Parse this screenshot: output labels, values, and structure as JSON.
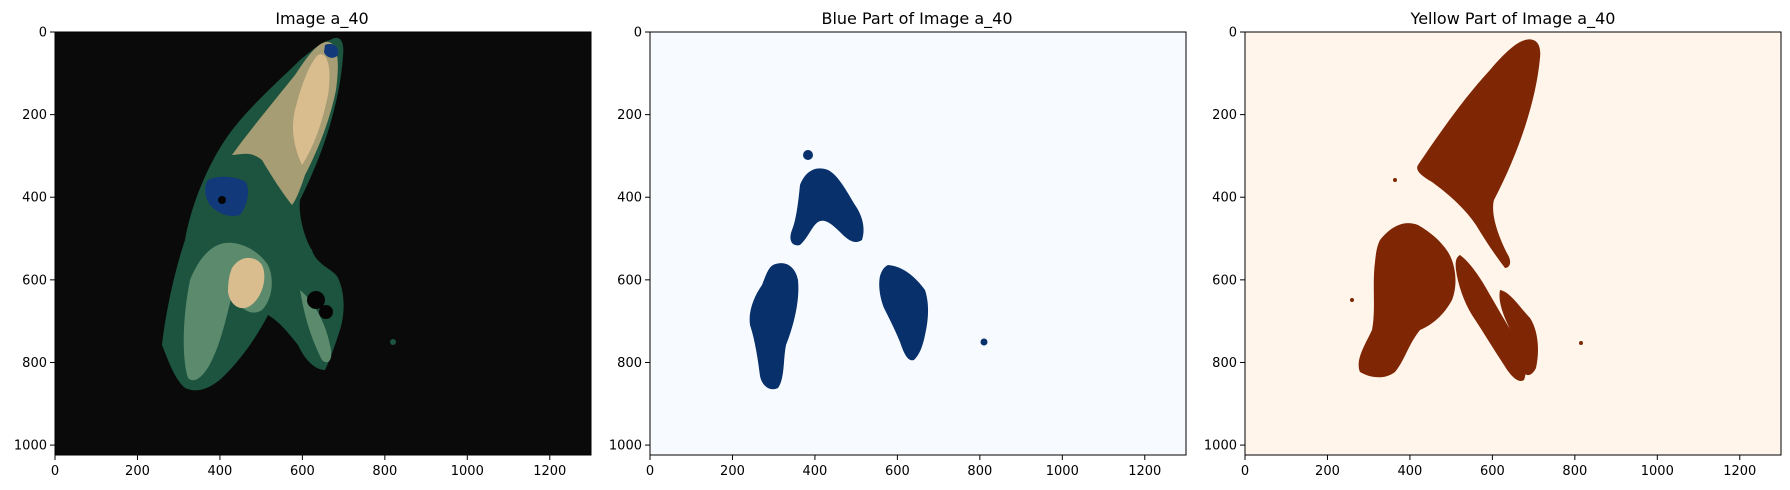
{
  "chart_data": [
    {
      "type": "heatmap",
      "title": "Image a_40",
      "xlabel": "",
      "ylabel": "",
      "xlim": [
        0,
        1300
      ],
      "ylim": [
        1024,
        0
      ],
      "xticks": [
        0,
        200,
        400,
        600,
        800,
        1000,
        1200
      ],
      "yticks": [
        0,
        200,
        400,
        600,
        800,
        1000
      ],
      "grid": false,
      "colors": {
        "background": "#0a0a0a",
        "dark_green": "#1c5440",
        "mid_green": "#5b8a6c",
        "tan": "#a79d74",
        "beige": "#d9bd8e",
        "blue": "#123a7a",
        "black_spots": "#050505"
      }
    },
    {
      "type": "heatmap",
      "title": "Blue Part of Image a_40",
      "xlabel": "",
      "ylabel": "",
      "xlim": [
        0,
        1300
      ],
      "ylim": [
        1024,
        0
      ],
      "xticks": [
        0,
        200,
        400,
        600,
        800,
        1000,
        1200
      ],
      "yticks": [
        0,
        200,
        400,
        600,
        800,
        1000
      ],
      "grid": false,
      "colors": {
        "background": "#f7fbff",
        "mask": "#08306b"
      }
    },
    {
      "type": "heatmap",
      "title": "Yellow Part of Image a_40",
      "xlabel": "",
      "ylabel": "",
      "xlim": [
        0,
        1300
      ],
      "ylim": [
        1024,
        0
      ],
      "xticks": [
        0,
        200,
        400,
        600,
        800,
        1000,
        1200
      ],
      "yticks": [
        0,
        200,
        400,
        600,
        800,
        1000
      ],
      "grid": false,
      "colors": {
        "background": "#fff5eb",
        "mask": "#7f2704"
      }
    }
  ]
}
